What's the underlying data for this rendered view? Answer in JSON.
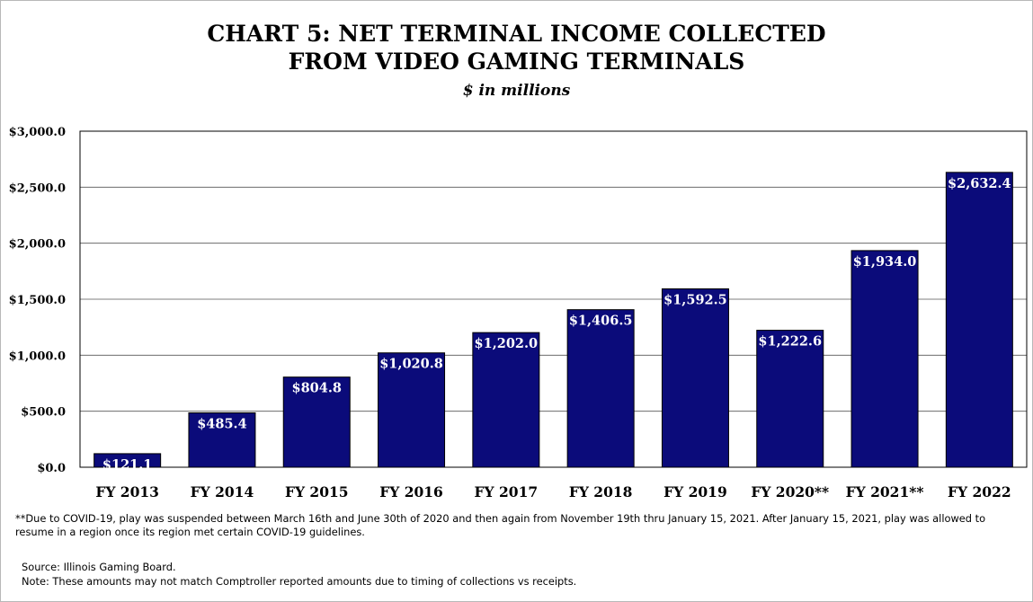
{
  "chart_data": {
    "type": "bar",
    "title": "CHART 5: NET TERMINAL INCOME COLLECTED FROM VIDEO GAMING TERMINALS",
    "title_lines": [
      "CHART 5: NET TERMINAL INCOME COLLECTED",
      "FROM VIDEO GAMING TERMINALS"
    ],
    "subtitle": "$ in millions",
    "xlabel": "",
    "ylabel": "",
    "categories": [
      "FY 2013",
      "FY 2014",
      "FY 2015",
      "FY 2016",
      "FY 2017",
      "FY 2018",
      "FY 2019",
      "FY 2020**",
      "FY 2021**",
      "FY 2022"
    ],
    "values": [
      121.1,
      485.4,
      804.8,
      1020.8,
      1202.0,
      1406.5,
      1592.5,
      1222.6,
      1934.0,
      2632.4
    ],
    "data_labels": [
      "$121.1",
      "$485.4",
      "$804.8",
      "$1,020.8",
      "$1,202.0",
      "$1,406.5",
      "$1,592.5",
      "$1,222.6",
      "$1,934.0",
      "$2,632.4"
    ],
    "ylim": [
      0,
      3000
    ],
    "yticks": [
      0,
      500,
      1000,
      1500,
      2000,
      2500,
      3000
    ],
    "ytick_labels": [
      "$0.0",
      "$500.0",
      "$1,000.0",
      "$1,500.0",
      "$2,000.0",
      "$2,500.0",
      "$3,000.0"
    ],
    "grid": true,
    "legend": "none",
    "bar_color": "#0b0b7a",
    "label_color": "#ffffff"
  },
  "footnote": "**Due to COVID-19, play was suspended between March 16th and June 30th of 2020 and then again from November 19th thru January 15, 2021.  After January 15, 2021, play was allowed to resume in a region once its region met certain COVID-19 guidelines.",
  "source": "Source:  Illinois Gaming Board.",
  "note": "Note:  These amounts may not match Comptroller reported amounts due to timing of collections vs receipts."
}
